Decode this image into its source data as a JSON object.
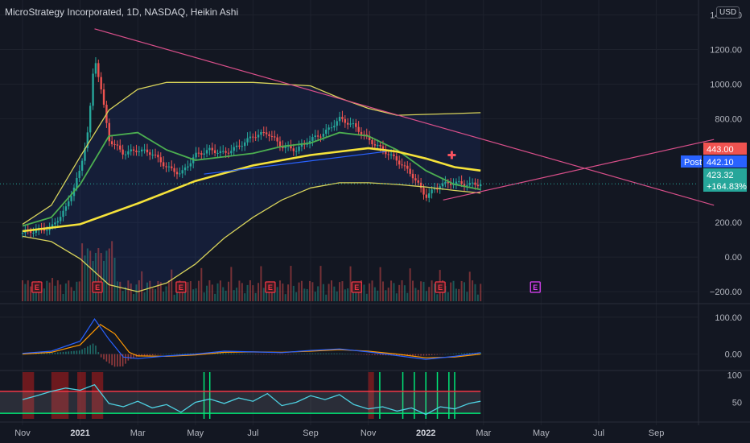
{
  "header": {
    "title": "MicroStrategy Incorporated, 1D, NASDAQ, Heikin Ashi",
    "currency": "USD"
  },
  "colors": {
    "background": "#131722",
    "grid": "#1e222d",
    "text": "#b2b5be",
    "up": "#26a69a",
    "down": "#ef5350",
    "ma_yellow": "#f5e23a",
    "ma_green": "#4caf50",
    "band": "#d8d35a",
    "trendline_pink": "#d94f8a",
    "trendline_blue": "#2962ff",
    "macd_blue": "#2962ff",
    "macd_orange": "#ff9800",
    "rsi_cyan": "#4dd0e1",
    "earnings_red": "#f23645",
    "earnings_purple": "#e040fb"
  },
  "price_labels": {
    "high": "443.00",
    "post_label": "Post",
    "post_value": "442.10",
    "last": "423.32",
    "change": "+164.83%"
  },
  "chart_data": [
    {
      "type": "line",
      "panel": "price",
      "ylim": [
        -260,
        1440
      ],
      "y_ticks": [
        "1400.00",
        "1200.00",
        "1000.00",
        "800.00",
        "200.00",
        "0.00",
        "−200.00"
      ],
      "x_ticks": [
        "Nov",
        "2021",
        "Mar",
        "May",
        "Jul",
        "Sep",
        "Nov",
        "2022",
        "Mar",
        "May",
        "Jul",
        "Sep"
      ],
      "x_months": [
        0,
        2,
        4,
        6,
        8,
        10,
        12,
        14,
        16,
        18,
        20,
        22
      ],
      "last_bar_month": 15.9,
      "price_approx": [
        [
          0,
          140
        ],
        [
          1,
          170
        ],
        [
          1.5,
          280
        ],
        [
          2.0,
          500
        ],
        [
          2.3,
          760
        ],
        [
          2.5,
          1160
        ],
        [
          2.7,
          1000
        ],
        [
          3.0,
          680
        ],
        [
          3.5,
          600
        ],
        [
          4.0,
          620
        ],
        [
          4.5,
          600
        ],
        [
          5.0,
          520
        ],
        [
          5.5,
          480
        ],
        [
          6.0,
          590
        ],
        [
          6.5,
          620
        ],
        [
          7.0,
          600
        ],
        [
          7.5,
          640
        ],
        [
          8.0,
          700
        ],
        [
          8.5,
          720
        ],
        [
          9.0,
          640
        ],
        [
          9.5,
          620
        ],
        [
          10.0,
          680
        ],
        [
          10.5,
          720
        ],
        [
          11.0,
          800
        ],
        [
          11.5,
          760
        ],
        [
          12.0,
          680
        ],
        [
          12.5,
          620
        ],
        [
          13.0,
          560
        ],
        [
          13.5,
          480
        ],
        [
          14.0,
          350
        ],
        [
          14.5,
          420
        ],
        [
          15.0,
          430
        ],
        [
          15.5,
          420
        ],
        [
          15.9,
          423
        ]
      ],
      "ma_yellow": [
        [
          0,
          150
        ],
        [
          2,
          190
        ],
        [
          4,
          310
        ],
        [
          6,
          440
        ],
        [
          8,
          530
        ],
        [
          10,
          590
        ],
        [
          12,
          630
        ],
        [
          13,
          610
        ],
        [
          14,
          570
        ],
        [
          15,
          520
        ],
        [
          15.9,
          500
        ]
      ],
      "ma_green": [
        [
          0,
          180
        ],
        [
          1,
          230
        ],
        [
          2,
          420
        ],
        [
          3,
          700
        ],
        [
          4,
          720
        ],
        [
          5,
          620
        ],
        [
          6,
          560
        ],
        [
          7,
          580
        ],
        [
          8,
          600
        ],
        [
          9,
          640
        ],
        [
          10,
          660
        ],
        [
          11,
          720
        ],
        [
          12,
          700
        ],
        [
          13,
          620
        ],
        [
          14,
          500
        ],
        [
          15,
          420
        ],
        [
          15.9,
          390
        ]
      ],
      "band_upper": [
        [
          0,
          190
        ],
        [
          1,
          300
        ],
        [
          2,
          580
        ],
        [
          3,
          850
        ],
        [
          4,
          970
        ],
        [
          5,
          1010
        ],
        [
          6,
          1010
        ],
        [
          8,
          1010
        ],
        [
          10,
          990
        ],
        [
          11,
          920
        ],
        [
          12,
          860
        ],
        [
          13,
          820
        ],
        [
          14,
          825
        ],
        [
          15,
          830
        ],
        [
          15.9,
          835
        ]
      ],
      "band_lower": [
        [
          0,
          120
        ],
        [
          1,
          90
        ],
        [
          2,
          -10
        ],
        [
          3,
          -160
        ],
        [
          4,
          -200
        ],
        [
          5,
          -150
        ],
        [
          6,
          -40
        ],
        [
          7,
          110
        ],
        [
          8,
          230
        ],
        [
          9,
          330
        ],
        [
          10,
          400
        ],
        [
          11,
          430
        ],
        [
          12,
          430
        ],
        [
          13,
          420
        ],
        [
          14,
          405
        ],
        [
          15,
          385
        ],
        [
          15.9,
          370
        ]
      ],
      "earnings_months": [
        0.5,
        2.6,
        5.5,
        8.6,
        11.6,
        14.5,
        17.8
      ],
      "trendlines": [
        {
          "from": [
            2.5,
            1320
          ],
          "to": [
            24,
            300
          ]
        },
        {
          "from": [
            14.6,
            330
          ],
          "to": [
            24,
            680
          ]
        },
        {
          "from": [
            6.3,
            480
          ],
          "to": [
            12.6,
            610
          ]
        }
      ]
    },
    {
      "type": "line",
      "panel": "macd",
      "ylim": [
        -40,
        130
      ],
      "y_ticks": [
        "100.00",
        "0.00"
      ],
      "macd_blue": [
        [
          0,
          2
        ],
        [
          1,
          8
        ],
        [
          2,
          35
        ],
        [
          2.5,
          95
        ],
        [
          3.0,
          40
        ],
        [
          3.5,
          -8
        ],
        [
          4,
          -12
        ],
        [
          5,
          -5
        ],
        [
          6,
          0
        ],
        [
          7,
          8
        ],
        [
          8,
          6
        ],
        [
          9,
          4
        ],
        [
          10,
          10
        ],
        [
          11,
          14
        ],
        [
          12,
          6
        ],
        [
          13,
          -4
        ],
        [
          14,
          -14
        ],
        [
          15,
          -6
        ],
        [
          15.9,
          4
        ]
      ],
      "macd_orange": [
        [
          0,
          0
        ],
        [
          1,
          5
        ],
        [
          2,
          25
        ],
        [
          2.7,
          80
        ],
        [
          3.2,
          55
        ],
        [
          3.7,
          5
        ],
        [
          4,
          -5
        ],
        [
          5,
          -6
        ],
        [
          6,
          -2
        ],
        [
          7,
          5
        ],
        [
          8,
          6
        ],
        [
          9,
          5
        ],
        [
          10,
          8
        ],
        [
          11,
          12
        ],
        [
          12,
          8
        ],
        [
          13,
          0
        ],
        [
          14,
          -10
        ],
        [
          15,
          -8
        ],
        [
          15.9,
          0
        ]
      ]
    },
    {
      "type": "line",
      "panel": "rsi",
      "ylim": [
        20,
        105
      ],
      "y_ticks": [
        "100",
        "50"
      ],
      "bands": [
        30,
        70
      ],
      "rsi": [
        [
          0,
          55
        ],
        [
          0.5,
          62
        ],
        [
          1,
          70
        ],
        [
          1.5,
          76
        ],
        [
          2,
          72
        ],
        [
          2.5,
          82
        ],
        [
          3,
          48
        ],
        [
          3.5,
          42
        ],
        [
          4,
          52
        ],
        [
          4.5,
          40
        ],
        [
          5,
          46
        ],
        [
          5.5,
          32
        ],
        [
          6,
          50
        ],
        [
          6.5,
          56
        ],
        [
          7,
          48
        ],
        [
          7.5,
          58
        ],
        [
          8,
          52
        ],
        [
          8.5,
          66
        ],
        [
          9,
          44
        ],
        [
          9.5,
          50
        ],
        [
          10,
          62
        ],
        [
          10.5,
          55
        ],
        [
          11,
          64
        ],
        [
          11.5,
          46
        ],
        [
          12,
          38
        ],
        [
          12.5,
          42
        ],
        [
          13,
          34
        ],
        [
          13.5,
          40
        ],
        [
          14,
          28
        ],
        [
          14.5,
          42
        ],
        [
          15,
          38
        ],
        [
          15.5,
          48
        ],
        [
          15.9,
          52
        ]
      ],
      "overbought_zones": [
        [
          0,
          0.4
        ],
        [
          1.0,
          1.6
        ],
        [
          1.9,
          2.2
        ],
        [
          2.4,
          2.8
        ],
        [
          12.0,
          12.2
        ]
      ],
      "oversold_marks": [
        6.3,
        6.5,
        12.4,
        13.2,
        13.6,
        14.0,
        14.4,
        14.8,
        15.0
      ]
    }
  ]
}
